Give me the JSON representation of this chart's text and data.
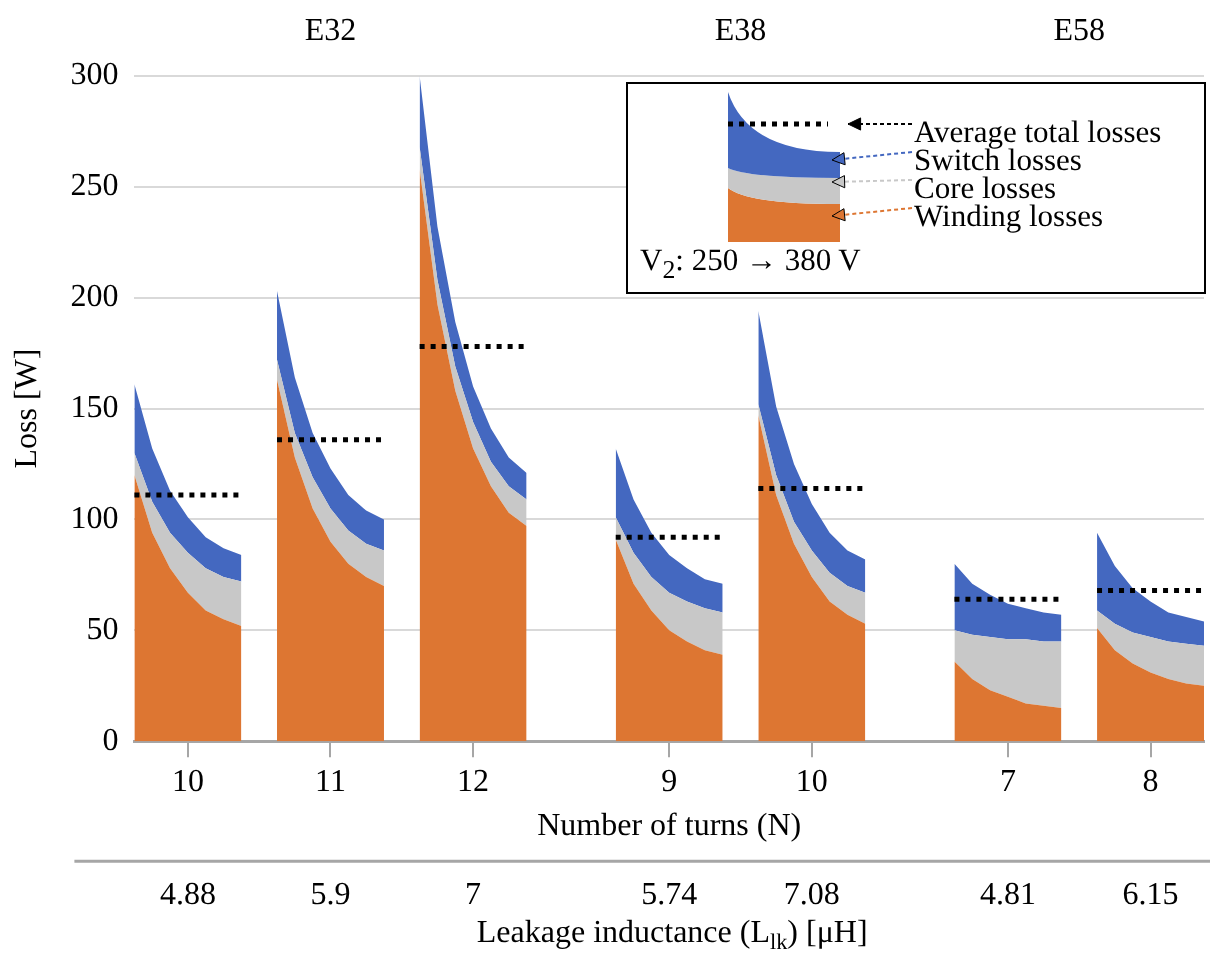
{
  "chart_data": {
    "type": "area",
    "stacked": true,
    "ylabel": "Loss [W]",
    "xlabel": "Number of turns (N)",
    "categories": [
      null,
      null,
      null,
      "10",
      null,
      null,
      null,
      null,
      null,
      null,
      null,
      "11",
      null,
      null,
      null,
      null,
      null,
      null,
      null,
      "12",
      null,
      null,
      null,
      null,
      null,
      null,
      null,
      null,
      null,
      null,
      "9",
      null,
      null,
      null,
      null,
      null,
      null,
      null,
      "10",
      null,
      null,
      null,
      null,
      null,
      null,
      null,
      null,
      null,
      null,
      "7",
      null,
      null,
      null,
      null,
      null,
      null,
      null,
      "8",
      null,
      null,
      null
    ],
    "series": [
      {
        "name": "Winding losses",
        "type": "area",
        "color": "#dd7632",
        "values": [
          120,
          94,
          78,
          67,
          59,
          55,
          52,
          null,
          163,
          128,
          105,
          90,
          80,
          74,
          70,
          null,
          258,
          197,
          158,
          132,
          115,
          103,
          97,
          null,
          null,
          null,
          null,
          91,
          71,
          59,
          50,
          45,
          41,
          39,
          null,
          147,
          111,
          89,
          74,
          63,
          57,
          53,
          null,
          null,
          null,
          null,
          36,
          28,
          23,
          20,
          17,
          16,
          15,
          null,
          51,
          41,
          35,
          31,
          28,
          26,
          25
        ]
      },
      {
        "name": "Core losses",
        "type": "area",
        "color": "#c8c8c8",
        "values": [
          10,
          14,
          16,
          18,
          19,
          19,
          20,
          null,
          9,
          11,
          14,
          15,
          15,
          15,
          16,
          null,
          10,
          11,
          11,
          12,
          11,
          12,
          12,
          null,
          null,
          null,
          null,
          10,
          14,
          15,
          17,
          18,
          19,
          19,
          null,
          5,
          9,
          10,
          12,
          13,
          13,
          14,
          null,
          null,
          null,
          null,
          14,
          20,
          24,
          26,
          29,
          29,
          30,
          null,
          8,
          12,
          14,
          16,
          17,
          18,
          18
        ]
      },
      {
        "name": "Switch losses",
        "type": "area",
        "color": "#4468c0",
        "values": [
          31,
          24,
          19,
          16,
          14,
          13,
          12,
          null,
          31,
          25,
          20,
          18,
          16,
          15,
          14,
          null,
          32,
          24,
          20,
          16,
          15,
          13,
          12,
          null,
          null,
          null,
          null,
          31,
          24,
          20,
          17,
          15,
          13,
          13,
          null,
          42,
          31,
          26,
          21,
          18,
          16,
          15,
          null,
          null,
          null,
          null,
          30,
          23,
          19,
          16,
          14,
          13,
          12,
          null,
          35,
          26,
          20,
          16,
          13,
          12,
          11
        ]
      },
      {
        "name": "Average total losses",
        "type": "line",
        "line_style": "dotted",
        "color": "#000000",
        "values": [
          111,
          111,
          111,
          111,
          111,
          111,
          111,
          null,
          136,
          136,
          136,
          136,
          136,
          136,
          136,
          null,
          178,
          178,
          178,
          178,
          178,
          178,
          178,
          null,
          null,
          null,
          null,
          92,
          92,
          92,
          92,
          92,
          92,
          92,
          null,
          114,
          114,
          114,
          114,
          114,
          114,
          114,
          null,
          null,
          null,
          null,
          64,
          64,
          64,
          64,
          64,
          64,
          64,
          null,
          68,
          68,
          68,
          68,
          68,
          68,
          68
        ]
      }
    ],
    "ylim": [
      0,
      300
    ],
    "yticks": [
      0,
      50,
      100,
      150,
      200,
      250,
      300
    ],
    "grid": "y",
    "legend": "top right",
    "marker": "none",
    "annotations": [
      "E32",
      "E38",
      "E58",
      "4.88",
      "5.9",
      "7",
      "5.74",
      "7.08",
      "4.81",
      "6.15",
      "Leakage inductance (L$_{lk}$) [μH]",
      "V$_{2}$: 250 → 380 V"
    ]
  }
}
